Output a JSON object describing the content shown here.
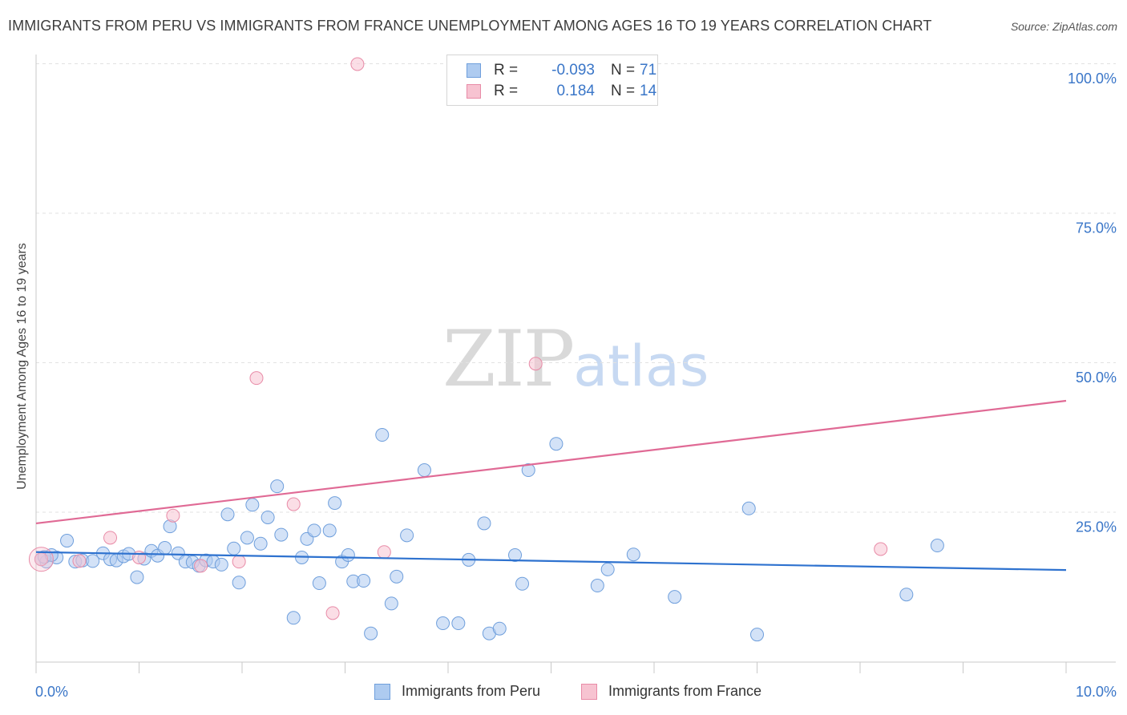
{
  "title": "IMMIGRANTS FROM PERU VS IMMIGRANTS FROM FRANCE UNEMPLOYMENT AMONG AGES 16 TO 19 YEARS CORRELATION CHART",
  "source": "Source: ZipAtlas.com",
  "watermark": {
    "zip": "ZIP",
    "atlas": "atlas"
  },
  "legend_top": [
    {
      "r_label": "R =",
      "r_value": "-0.093",
      "n_label": "N =",
      "n_value": "71"
    },
    {
      "r_label": "R =",
      "r_value": "0.184",
      "n_label": "N =",
      "n_value": "14"
    }
  ],
  "legend_bottom": [
    {
      "label": "Immigrants from Peru"
    },
    {
      "label": "Immigrants from France"
    }
  ],
  "colors": {
    "peru_fill": "#aecbf0",
    "peru_stroke": "#6f9fdc",
    "peru_line": "#2e72cf",
    "france_fill": "#f7c3d1",
    "france_stroke": "#e88ba7",
    "france_line": "#e06a95",
    "axis_label": "#3a76c8",
    "grid": "#e2e2e2"
  },
  "chart_data": {
    "type": "scatter",
    "title": "IMMIGRANTS FROM PERU VS IMMIGRANTS FROM FRANCE UNEMPLOYMENT AMONG AGES 16 TO 19 YEARS CORRELATION CHART",
    "xlabel": "",
    "ylabel": "Unemployment Among Ages 16 to 19 years",
    "xlim": [
      0,
      10
    ],
    "ylim": [
      0,
      102
    ],
    "x_tick_labels": [
      "0.0%",
      "10.0%"
    ],
    "y_ticks": [
      25,
      50,
      75,
      100
    ],
    "y_tick_labels": [
      "25.0%",
      "50.0%",
      "75.0%",
      "100.0%"
    ],
    "grid": "horizontal dashed",
    "legend_position": "top-center",
    "series": [
      {
        "name": "Immigrants from Peru",
        "r": -0.093,
        "n": 71,
        "trend": {
          "x": [
            0,
            10
          ],
          "y": [
            18.4,
            15.4
          ]
        },
        "points": [
          [
            0.05,
            17.2
          ],
          [
            0.1,
            16.8
          ],
          [
            0.2,
            17.5
          ],
          [
            0.3,
            20.3
          ],
          [
            0.38,
            16.8
          ],
          [
            0.45,
            17.0
          ],
          [
            0.55,
            16.9
          ],
          [
            0.65,
            18.2
          ],
          [
            0.72,
            17.2
          ],
          [
            0.78,
            17.0
          ],
          [
            0.85,
            17.7
          ],
          [
            0.9,
            18.1
          ],
          [
            0.98,
            14.2
          ],
          [
            1.05,
            17.3
          ],
          [
            1.12,
            18.6
          ],
          [
            1.18,
            17.8
          ],
          [
            1.25,
            19.1
          ],
          [
            1.3,
            22.7
          ],
          [
            1.38,
            18.2
          ],
          [
            1.45,
            16.8
          ],
          [
            1.52,
            16.7
          ],
          [
            1.58,
            16.1
          ],
          [
            1.65,
            17.0
          ],
          [
            1.72,
            16.8
          ],
          [
            1.8,
            16.3
          ],
          [
            1.86,
            24.7
          ],
          [
            1.92,
            19.0
          ],
          [
            1.97,
            13.3
          ],
          [
            2.05,
            20.8
          ],
          [
            2.1,
            26.3
          ],
          [
            2.18,
            19.8
          ],
          [
            2.25,
            24.2
          ],
          [
            2.34,
            29.4
          ],
          [
            2.38,
            21.3
          ],
          [
            2.5,
            7.4
          ],
          [
            2.58,
            17.5
          ],
          [
            2.63,
            20.6
          ],
          [
            2.7,
            22.0
          ],
          [
            2.75,
            13.2
          ],
          [
            2.85,
            22.0
          ],
          [
            2.9,
            26.6
          ],
          [
            2.97,
            16.8
          ],
          [
            3.03,
            17.9
          ],
          [
            3.08,
            13.5
          ],
          [
            3.18,
            13.6
          ],
          [
            3.25,
            4.8
          ],
          [
            3.36,
            38.0
          ],
          [
            3.45,
            9.8
          ],
          [
            3.5,
            14.3
          ],
          [
            3.6,
            21.2
          ],
          [
            3.77,
            32.1
          ],
          [
            3.95,
            6.5
          ],
          [
            4.1,
            6.5
          ],
          [
            4.2,
            17.1
          ],
          [
            4.35,
            23.2
          ],
          [
            4.4,
            4.8
          ],
          [
            4.5,
            5.6
          ],
          [
            4.65,
            17.9
          ],
          [
            4.72,
            13.1
          ],
          [
            4.78,
            32.1
          ],
          [
            5.05,
            36.5
          ],
          [
            5.45,
            12.8
          ],
          [
            5.55,
            15.5
          ],
          [
            5.8,
            18.0
          ],
          [
            6.2,
            10.9
          ],
          [
            6.92,
            25.7
          ],
          [
            7.0,
            4.6
          ],
          [
            8.45,
            11.3
          ],
          [
            8.75,
            19.5
          ],
          [
            0.08,
            17.6
          ],
          [
            0.15,
            17.9
          ]
        ]
      },
      {
        "name": "Immigrants from France",
        "r": 0.184,
        "n": 14,
        "trend": {
          "x": [
            0,
            10
          ],
          "y": [
            23.2,
            43.7
          ]
        },
        "points": [
          [
            0.05,
            17.2
          ],
          [
            0.42,
            16.9
          ],
          [
            0.72,
            20.8
          ],
          [
            1.0,
            17.5
          ],
          [
            1.33,
            24.5
          ],
          [
            1.6,
            16.1
          ],
          [
            1.97,
            16.8
          ],
          [
            2.14,
            47.5
          ],
          [
            2.5,
            26.4
          ],
          [
            2.88,
            8.2
          ],
          [
            3.12,
            100.0
          ],
          [
            3.38,
            18.4
          ],
          [
            4.85,
            49.9
          ],
          [
            8.2,
            18.9
          ]
        ]
      }
    ]
  }
}
